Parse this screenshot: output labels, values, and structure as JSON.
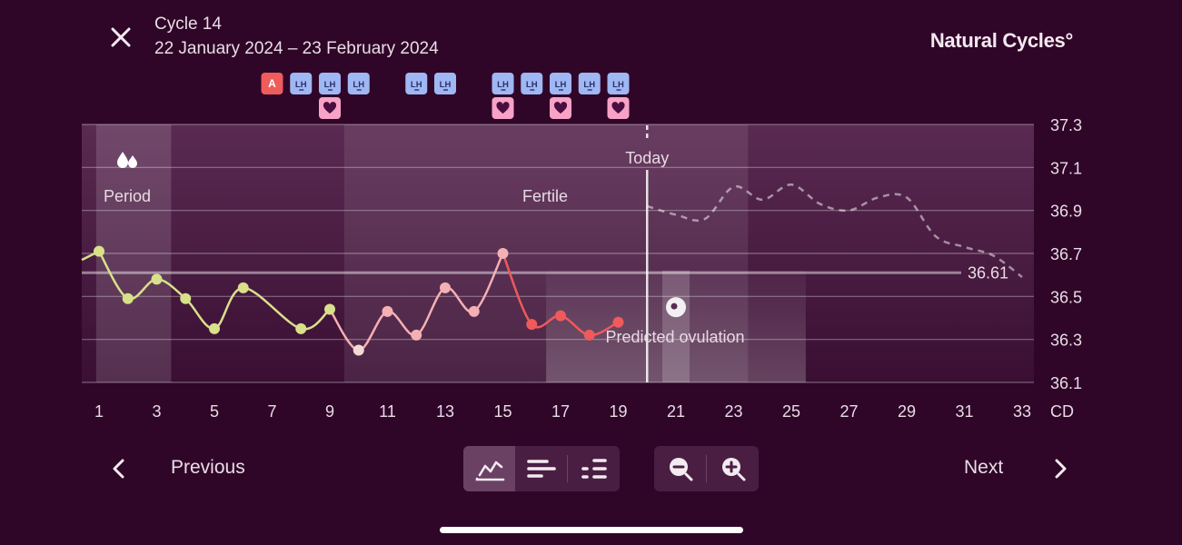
{
  "header": {
    "close_icon": "close-icon",
    "cycle_title": "Cycle 14",
    "cycle_dates": "22 January 2024 – 23 February 2024",
    "brand": "Natural Cycles°"
  },
  "colors": {
    "background": "#2f0628",
    "green_line": "#d8e08a",
    "pink_line": "#f4b0b4",
    "red_line": "#ef5a5a",
    "lh_badge": "#9fb7f2",
    "sex_badge": "#f7a2c6",
    "a_badge": "#ee5c5c"
  },
  "chart_data": {
    "type": "line",
    "x_unit_label": "CD",
    "xlim": [
      0,
      34
    ],
    "ylim": [
      36.1,
      37.3
    ],
    "y_ticks": [
      "37.3",
      "37.1",
      "36.9",
      "36.7",
      "36.5",
      "36.3",
      "36.1"
    ],
    "x_ticks": [
      "1",
      "3",
      "5",
      "7",
      "9",
      "11",
      "13",
      "15",
      "17",
      "19",
      "21",
      "23",
      "25",
      "27",
      "29",
      "31",
      "33"
    ],
    "coverline": {
      "value": 36.61,
      "label": "36.61"
    },
    "phases": [
      {
        "label": "Period",
        "from": 0.9,
        "to": 3.5,
        "icon": "drops-icon"
      },
      {
        "label": "Fertile",
        "from": 9.5,
        "to": 23.5
      }
    ],
    "ovulation_window": {
      "label": "Predicted ovulation",
      "from": 16.5,
      "to": 25.5,
      "icon": "ovulation-icon"
    },
    "today": {
      "label": "Today",
      "x": 20
    },
    "measured": [
      {
        "x": 1,
        "y": 36.71,
        "phase": "green"
      },
      {
        "x": 2,
        "y": 36.49,
        "phase": "green"
      },
      {
        "x": 3,
        "y": 36.58,
        "phase": "green"
      },
      {
        "x": 4,
        "y": 36.49,
        "phase": "green"
      },
      {
        "x": 5,
        "y": 36.35,
        "phase": "green"
      },
      {
        "x": 6,
        "y": 36.54,
        "phase": "green"
      },
      {
        "x": 8,
        "y": 36.35,
        "phase": "green"
      },
      {
        "x": 9,
        "y": 36.44,
        "phase": "green"
      },
      {
        "x": 10,
        "y": 36.25,
        "phase": "pink",
        "light": true
      },
      {
        "x": 11,
        "y": 36.43,
        "phase": "pink"
      },
      {
        "x": 12,
        "y": 36.32,
        "phase": "pink"
      },
      {
        "x": 13,
        "y": 36.54,
        "phase": "pink"
      },
      {
        "x": 14,
        "y": 36.43,
        "phase": "pink"
      },
      {
        "x": 15,
        "y": 36.7,
        "phase": "pink"
      },
      {
        "x": 16,
        "y": 36.37,
        "phase": "red"
      },
      {
        "x": 17,
        "y": 36.41,
        "phase": "red"
      },
      {
        "x": 18,
        "y": 36.32,
        "phase": "red"
      },
      {
        "x": 19,
        "y": 36.38,
        "phase": "red"
      }
    ],
    "predicted": [
      {
        "x": 20,
        "y": 36.92
      },
      {
        "x": 21,
        "y": 36.88
      },
      {
        "x": 22,
        "y": 36.86
      },
      {
        "x": 23,
        "y": 37.01
      },
      {
        "x": 24,
        "y": 36.95
      },
      {
        "x": 25,
        "y": 37.02
      },
      {
        "x": 26,
        "y": 36.93
      },
      {
        "x": 27,
        "y": 36.9
      },
      {
        "x": 28,
        "y": 36.96
      },
      {
        "x": 29,
        "y": 36.96
      },
      {
        "x": 30,
        "y": 36.78
      },
      {
        "x": 31,
        "y": 36.73
      },
      {
        "x": 32,
        "y": 36.69
      },
      {
        "x": 33,
        "y": 36.59
      }
    ],
    "daily_badges": [
      {
        "day": 7,
        "top": "A"
      },
      {
        "day": 8,
        "top": "LH"
      },
      {
        "day": 9,
        "top": "LH",
        "bottom": "heart-icon"
      },
      {
        "day": 10,
        "top": "LH"
      },
      {
        "day": 12,
        "top": "LH"
      },
      {
        "day": 13,
        "top": "LH"
      },
      {
        "day": 15,
        "top": "LH",
        "bottom": "heart-icon"
      },
      {
        "day": 16,
        "top": "LH"
      },
      {
        "day": 17,
        "top": "LH",
        "bottom": "heart-icon"
      },
      {
        "day": 18,
        "top": "LH"
      },
      {
        "day": 19,
        "top": "LH",
        "bottom": "heart-icon"
      }
    ]
  },
  "footer": {
    "previous_label": "Previous",
    "next_label": "Next",
    "view_buttons": [
      "graph-view-icon",
      "bar-view-icon",
      "dots-view-icon"
    ],
    "zoom_buttons": [
      "zoom-out-icon",
      "zoom-in-icon"
    ]
  }
}
